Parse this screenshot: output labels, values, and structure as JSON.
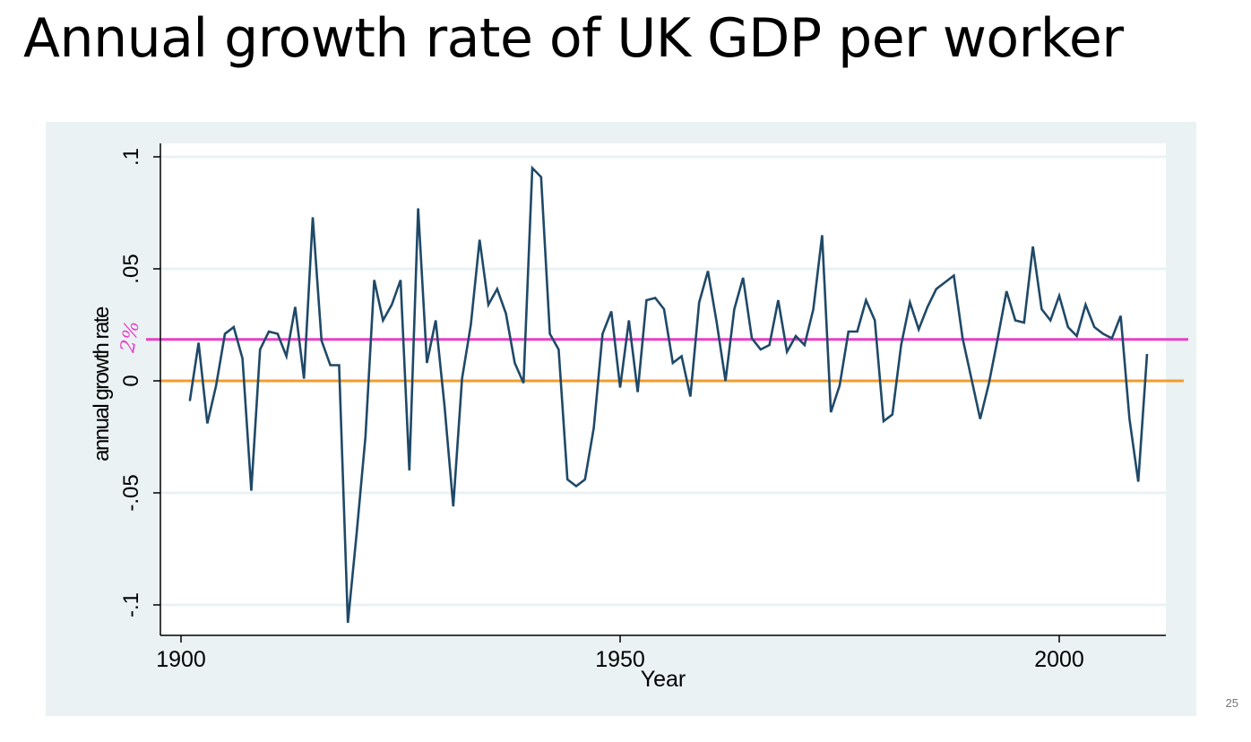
{
  "slide": {
    "title": "Annual growth rate of UK GDP per worker",
    "page_number": "25",
    "handwritten_note": "2%"
  },
  "colors": {
    "frame_bg": "#eaf2f3",
    "plot_bg": "#ffffff",
    "grid": "#eaf2f3",
    "series": "#1f4968",
    "zero_line": "#f39c2e",
    "mean_line": "#e83fc9"
  },
  "chart_data": {
    "type": "line",
    "title": "",
    "xlabel": "Year",
    "ylabel": "annual growth rate",
    "xlim": [
      1897,
      2012
    ],
    "ylim": [
      -0.113,
      0.102
    ],
    "x_ticks": [
      1900,
      1950,
      2000
    ],
    "x_tick_labels": [
      "1900",
      "1950",
      "2000"
    ],
    "y_ticks": [
      -0.1,
      -0.05,
      0,
      0.05,
      0.1
    ],
    "y_tick_labels": [
      "-.1",
      "-.05",
      "0",
      ".05",
      ".1"
    ],
    "grid": true,
    "reference_lines": [
      {
        "y": 0,
        "color": "#f39c2e"
      },
      {
        "y": 0.0185,
        "color": "#e83fc9"
      }
    ],
    "series": [
      {
        "x": [
          1901,
          1902,
          1903,
          1904,
          1905,
          1906,
          1907,
          1908,
          1909,
          1910,
          1911,
          1912,
          1913,
          1914,
          1915,
          1916,
          1917,
          1918,
          1919,
          1920,
          1921,
          1922,
          1923,
          1924,
          1925,
          1926,
          1927,
          1928,
          1929,
          1930,
          1931,
          1932,
          1933,
          1934,
          1935,
          1936,
          1937,
          1938,
          1939,
          1940,
          1941,
          1942,
          1943,
          1944,
          1945,
          1946,
          1947,
          1948,
          1949,
          1950,
          1951,
          1952,
          1953,
          1954,
          1955,
          1956,
          1957,
          1958,
          1959,
          1960,
          1961,
          1962,
          1963,
          1964,
          1965,
          1966,
          1967,
          1968,
          1969,
          1970,
          1971,
          1972,
          1973,
          1974,
          1975,
          1976,
          1977,
          1978,
          1979,
          1980,
          1981,
          1982,
          1983,
          1984,
          1985,
          1986,
          1987,
          1988,
          1989,
          1990,
          1991,
          1992,
          1993,
          1994,
          1995,
          1996,
          1997,
          1998,
          1999,
          2000,
          2001,
          2002,
          2003,
          2004,
          2005,
          2006,
          2007,
          2008,
          2009,
          2010
        ],
        "values": [
          -0.009,
          0.017,
          -0.019,
          -0.002,
          0.021,
          0.024,
          0.01,
          -0.049,
          0.014,
          0.022,
          0.021,
          0.011,
          0.033,
          0.001,
          0.073,
          0.018,
          0.007,
          0.007,
          -0.108,
          -0.068,
          -0.025,
          0.045,
          0.027,
          0.034,
          0.045,
          -0.04,
          0.077,
          0.008,
          0.027,
          -0.011,
          -0.056,
          0.001,
          0.025,
          0.063,
          0.034,
          0.041,
          0.03,
          0.008,
          -0.001,
          0.095,
          0.091,
          0.021,
          0.014,
          -0.044,
          -0.047,
          -0.044,
          -0.021,
          0.021,
          0.031,
          -0.003,
          0.027,
          -0.005,
          0.036,
          0.037,
          0.032,
          0.008,
          0.011,
          -0.007,
          0.035,
          0.049,
          0.026,
          0.0,
          0.032,
          0.046,
          0.019,
          0.014,
          0.016,
          0.036,
          0.013,
          0.02,
          0.016,
          0.032,
          0.065,
          -0.014,
          -0.002,
          0.022,
          0.022,
          0.036,
          0.027,
          -0.018,
          -0.015,
          0.016,
          0.035,
          0.023,
          0.033,
          0.041,
          0.044,
          0.047,
          0.019,
          0.001,
          -0.017,
          -0.001,
          0.019,
          0.04,
          0.027,
          0.026,
          0.06,
          0.032,
          0.027,
          0.038,
          0.024,
          0.02,
          0.034,
          0.024,
          0.021,
          0.019,
          0.029,
          -0.017,
          -0.045,
          0.012
        ]
      }
    ]
  }
}
